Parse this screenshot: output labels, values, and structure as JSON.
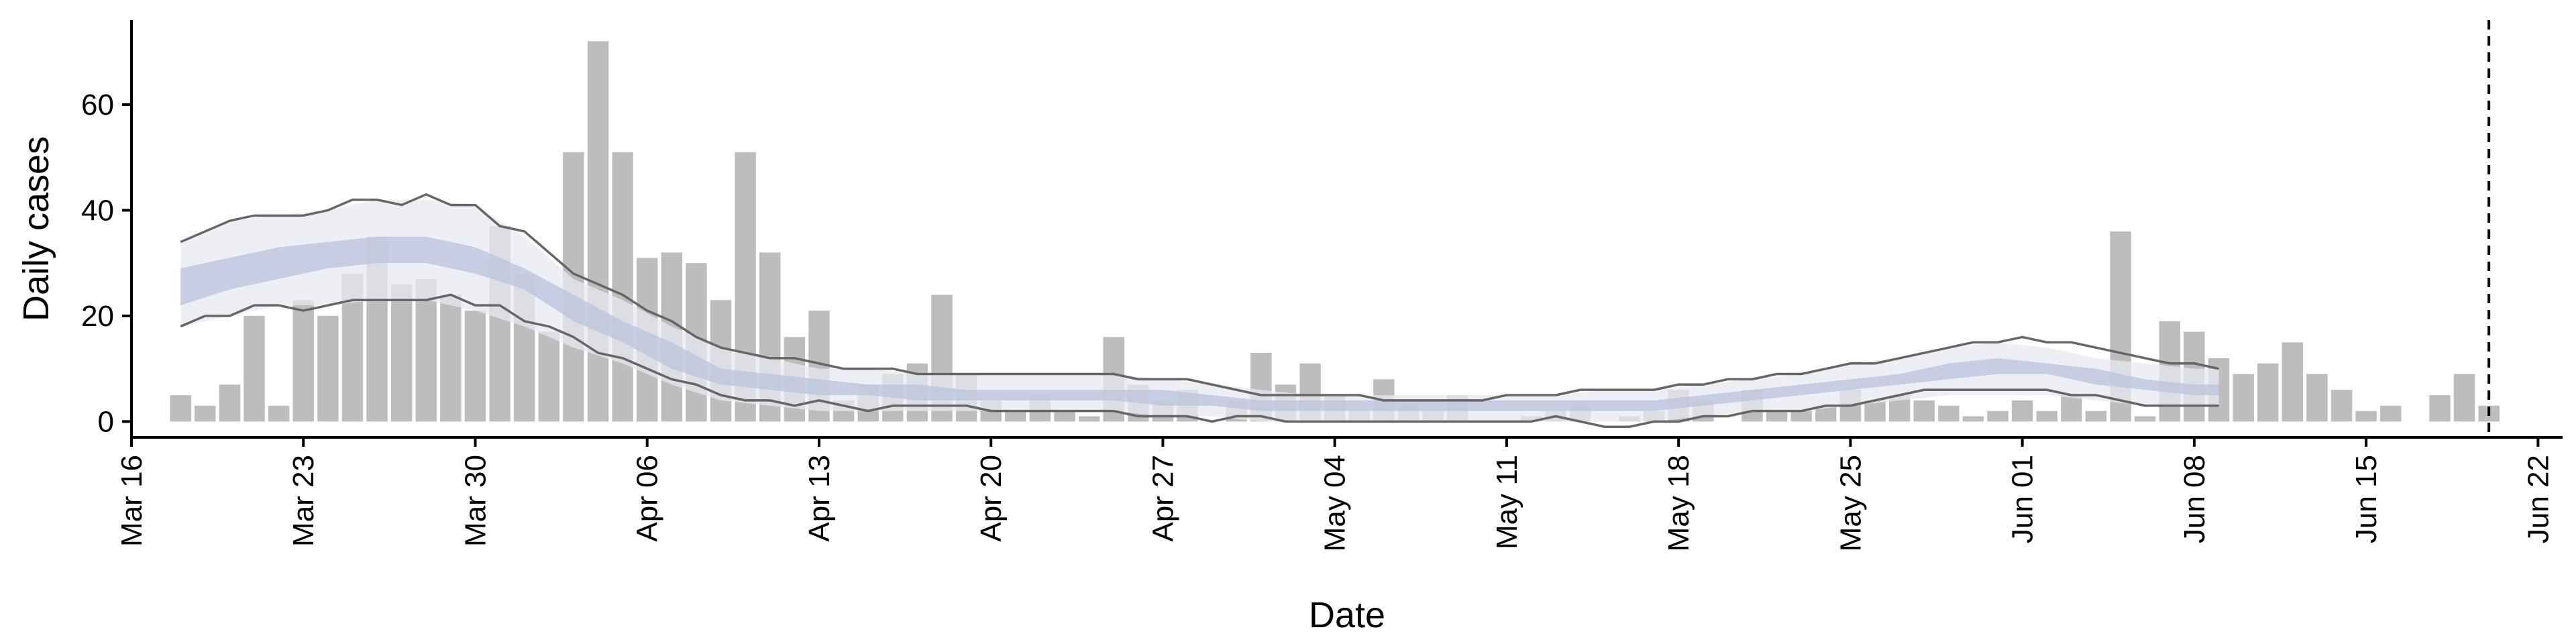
{
  "chart_data": {
    "type": "bar",
    "xlabel": "Date",
    "ylabel": "Daily cases",
    "x_ticks": [
      {
        "date": "2020-03-16",
        "label": "Mar 16"
      },
      {
        "date": "2020-03-23",
        "label": "Mar 23"
      },
      {
        "date": "2020-03-30",
        "label": "Mar 30"
      },
      {
        "date": "2020-04-06",
        "label": "Apr 06"
      },
      {
        "date": "2020-04-13",
        "label": "Apr 13"
      },
      {
        "date": "2020-04-20",
        "label": "Apr 20"
      },
      {
        "date": "2020-04-27",
        "label": "Apr 27"
      },
      {
        "date": "2020-05-04",
        "label": "May 04"
      },
      {
        "date": "2020-05-11",
        "label": "May 11"
      },
      {
        "date": "2020-05-18",
        "label": "May 18"
      },
      {
        "date": "2020-05-25",
        "label": "May 25"
      },
      {
        "date": "2020-06-01",
        "label": "Jun 01"
      },
      {
        "date": "2020-06-08",
        "label": "Jun 08"
      },
      {
        "date": "2020-06-15",
        "label": "Jun 15"
      },
      {
        "date": "2020-06-22",
        "label": "Jun 22"
      }
    ],
    "y_ticks": [
      0,
      20,
      40,
      60
    ],
    "xlim": [
      "2020-03-16",
      "2020-06-23"
    ],
    "ylim": [
      -3,
      76
    ],
    "vline_date": "2020-06-20",
    "colors": {
      "bars": "#bdbdbd",
      "outer_band": "#e8eaf2",
      "inner_band": "#b9c3dc",
      "bound_lines": "#666666",
      "axes": "#000000"
    },
    "series": [
      {
        "kind": "daily_cases",
        "x": [
          "2020-03-18",
          "2020-03-19",
          "2020-03-20",
          "2020-03-21",
          "2020-03-22",
          "2020-03-23",
          "2020-03-24",
          "2020-03-25",
          "2020-03-26",
          "2020-03-27",
          "2020-03-28",
          "2020-03-29",
          "2020-03-30",
          "2020-03-31",
          "2020-04-01",
          "2020-04-02",
          "2020-04-03",
          "2020-04-04",
          "2020-04-05",
          "2020-04-06",
          "2020-04-07",
          "2020-04-08",
          "2020-04-09",
          "2020-04-10",
          "2020-04-11",
          "2020-04-12",
          "2020-04-13",
          "2020-04-14",
          "2020-04-15",
          "2020-04-16",
          "2020-04-17",
          "2020-04-18",
          "2020-04-19",
          "2020-04-20",
          "2020-04-21",
          "2020-04-22",
          "2020-04-23",
          "2020-04-24",
          "2020-04-25",
          "2020-04-26",
          "2020-04-27",
          "2020-04-28",
          "2020-04-29",
          "2020-04-30",
          "2020-05-01",
          "2020-05-02",
          "2020-05-03",
          "2020-05-04",
          "2020-05-05",
          "2020-05-06",
          "2020-05-07",
          "2020-05-08",
          "2020-05-09",
          "2020-05-10",
          "2020-05-11",
          "2020-05-12",
          "2020-05-13",
          "2020-05-14",
          "2020-05-15",
          "2020-05-16",
          "2020-05-17",
          "2020-05-18",
          "2020-05-19",
          "2020-05-20",
          "2020-05-21",
          "2020-05-22",
          "2020-05-23",
          "2020-05-24",
          "2020-05-25",
          "2020-05-26",
          "2020-05-27",
          "2020-05-28",
          "2020-05-29",
          "2020-05-30",
          "2020-05-31",
          "2020-06-01",
          "2020-06-02",
          "2020-06-03",
          "2020-06-04",
          "2020-06-05",
          "2020-06-06",
          "2020-06-07",
          "2020-06-08",
          "2020-06-09",
          "2020-06-10",
          "2020-06-11",
          "2020-06-12",
          "2020-06-13",
          "2020-06-14",
          "2020-06-15",
          "2020-06-16",
          "2020-06-17",
          "2020-06-18",
          "2020-06-19",
          "2020-06-20"
        ],
        "values": [
          5,
          3,
          7,
          20,
          3,
          23,
          20,
          28,
          35,
          26,
          27,
          24,
          21,
          37,
          28,
          17,
          51,
          72,
          51,
          31,
          32,
          30,
          23,
          51,
          32,
          16,
          21,
          4,
          7,
          9,
          11,
          24,
          9,
          4,
          2,
          5,
          2,
          1,
          16,
          7,
          4,
          6,
          0,
          4,
          13,
          7,
          11,
          5,
          2,
          8,
          3,
          2,
          5,
          0,
          0,
          1,
          2,
          3,
          0,
          1,
          2,
          6,
          4,
          0,
          6,
          2,
          2,
          3,
          6,
          4,
          5,
          4,
          3,
          1,
          2,
          4,
          2,
          5,
          2,
          36,
          1,
          19,
          17,
          12,
          9,
          11,
          15,
          9,
          6,
          2,
          3,
          0,
          5,
          9,
          3
        ]
      },
      {
        "kind": "band_outer",
        "x": [
          "2020-03-18",
          "2020-03-20",
          "2020-03-22",
          "2020-03-24",
          "2020-03-26",
          "2020-03-28",
          "2020-03-30",
          "2020-04-01",
          "2020-04-03",
          "2020-04-05",
          "2020-04-07",
          "2020-04-09",
          "2020-04-11",
          "2020-04-13",
          "2020-04-15",
          "2020-04-17",
          "2020-04-19",
          "2020-04-21",
          "2020-04-23",
          "2020-04-25",
          "2020-04-27",
          "2020-04-29",
          "2020-05-01",
          "2020-05-03",
          "2020-05-05",
          "2020-05-07",
          "2020-05-09",
          "2020-05-11",
          "2020-05-13",
          "2020-05-15",
          "2020-05-17",
          "2020-05-19",
          "2020-05-21",
          "2020-05-23",
          "2020-05-25",
          "2020-05-27",
          "2020-05-29",
          "2020-05-31",
          "2020-06-02",
          "2020-06-04",
          "2020-06-06",
          "2020-06-08",
          "2020-06-09"
        ],
        "lower": [
          18,
          20,
          22,
          22,
          23,
          23,
          21,
          18,
          14,
          11,
          7,
          4,
          3,
          2,
          2,
          2,
          2,
          2,
          2,
          2,
          1,
          1,
          0,
          0,
          0,
          0,
          0,
          0,
          0,
          0,
          0,
          1,
          2,
          2,
          3,
          4,
          5,
          5,
          5,
          4,
          3,
          3,
          3
        ],
        "upper": [
          34,
          38,
          39,
          40,
          42,
          42,
          41,
          35,
          27,
          23,
          18,
          14,
          12,
          10,
          10,
          9,
          9,
          9,
          9,
          9,
          8,
          7,
          6,
          5,
          5,
          5,
          5,
          5,
          5,
          6,
          6,
          7,
          8,
          9,
          11,
          12,
          14,
          15,
          14,
          12,
          11,
          10,
          10
        ]
      },
      {
        "kind": "band_inner",
        "x": [
          "2020-03-18",
          "2020-03-20",
          "2020-03-22",
          "2020-03-24",
          "2020-03-26",
          "2020-03-28",
          "2020-03-30",
          "2020-04-01",
          "2020-04-03",
          "2020-04-05",
          "2020-04-07",
          "2020-04-09",
          "2020-04-11",
          "2020-04-13",
          "2020-04-15",
          "2020-04-17",
          "2020-04-19",
          "2020-04-21",
          "2020-04-23",
          "2020-04-25",
          "2020-04-27",
          "2020-04-29",
          "2020-05-01",
          "2020-05-03",
          "2020-05-05",
          "2020-05-07",
          "2020-05-09",
          "2020-05-11",
          "2020-05-13",
          "2020-05-15",
          "2020-05-17",
          "2020-05-19",
          "2020-05-21",
          "2020-05-23",
          "2020-05-25",
          "2020-05-27",
          "2020-05-29",
          "2020-05-31",
          "2020-06-02",
          "2020-06-04",
          "2020-06-06",
          "2020-06-08",
          "2020-06-09"
        ],
        "lower": [
          22,
          25,
          27,
          29,
          30,
          30,
          28,
          25,
          19,
          15,
          10,
          7,
          6,
          5,
          5,
          4,
          4,
          4,
          4,
          4,
          3,
          3,
          2,
          2,
          2,
          2,
          2,
          2,
          2,
          2,
          2,
          3,
          4,
          5,
          6,
          7,
          8,
          9,
          9,
          7,
          6,
          5,
          5
        ],
        "upper": [
          29,
          31,
          33,
          34,
          35,
          35,
          33,
          29,
          24,
          19,
          15,
          10,
          9,
          8,
          7,
          7,
          6,
          6,
          6,
          6,
          6,
          5,
          4,
          4,
          4,
          4,
          4,
          4,
          4,
          4,
          4,
          5,
          6,
          7,
          8,
          9,
          11,
          12,
          11,
          10,
          8,
          7,
          7
        ]
      },
      {
        "kind": "lower_bound_line",
        "x": [
          "2020-03-18",
          "2020-03-19",
          "2020-03-20",
          "2020-03-21",
          "2020-03-22",
          "2020-03-23",
          "2020-03-24",
          "2020-03-25",
          "2020-03-26",
          "2020-03-27",
          "2020-03-28",
          "2020-03-29",
          "2020-03-30",
          "2020-03-31",
          "2020-04-01",
          "2020-04-02",
          "2020-04-03",
          "2020-04-04",
          "2020-04-05",
          "2020-04-06",
          "2020-04-07",
          "2020-04-08",
          "2020-04-09",
          "2020-04-10",
          "2020-04-11",
          "2020-04-12",
          "2020-04-13",
          "2020-04-14",
          "2020-04-15",
          "2020-04-16",
          "2020-04-17",
          "2020-04-18",
          "2020-04-19",
          "2020-04-20",
          "2020-04-21",
          "2020-04-22",
          "2020-04-23",
          "2020-04-24",
          "2020-04-25",
          "2020-04-26",
          "2020-04-27",
          "2020-04-28",
          "2020-04-29",
          "2020-04-30",
          "2020-05-01",
          "2020-05-02",
          "2020-05-03",
          "2020-05-04",
          "2020-05-05",
          "2020-05-06",
          "2020-05-07",
          "2020-05-08",
          "2020-05-09",
          "2020-05-10",
          "2020-05-11",
          "2020-05-12",
          "2020-05-13",
          "2020-05-14",
          "2020-05-15",
          "2020-05-16",
          "2020-05-17",
          "2020-05-18",
          "2020-05-19",
          "2020-05-20",
          "2020-05-21",
          "2020-05-22",
          "2020-05-23",
          "2020-05-24",
          "2020-05-25",
          "2020-05-26",
          "2020-05-27",
          "2020-05-28",
          "2020-05-29",
          "2020-05-30",
          "2020-05-31",
          "2020-06-01",
          "2020-06-02",
          "2020-06-03",
          "2020-06-04",
          "2020-06-05",
          "2020-06-06",
          "2020-06-07",
          "2020-06-08",
          "2020-06-09"
        ],
        "values": [
          18,
          20,
          20,
          22,
          22,
          21,
          22,
          23,
          23,
          23,
          23,
          24,
          22,
          22,
          19,
          18,
          16,
          13,
          12,
          10,
          8,
          7,
          5,
          4,
          4,
          3,
          4,
          3,
          2,
          3,
          3,
          3,
          3,
          2,
          2,
          2,
          2,
          2,
          2,
          1,
          1,
          1,
          0,
          1,
          1,
          0,
          0,
          0,
          0,
          0,
          0,
          0,
          0,
          0,
          0,
          0,
          1,
          0,
          -1,
          -1,
          0,
          0,
          1,
          1,
          2,
          2,
          2,
          3,
          3,
          4,
          5,
          6,
          6,
          6,
          6,
          6,
          6,
          5,
          5,
          4,
          3,
          3,
          3,
          3
        ]
      },
      {
        "kind": "upper_bound_line",
        "x": [
          "2020-03-18",
          "2020-03-19",
          "2020-03-20",
          "2020-03-21",
          "2020-03-22",
          "2020-03-23",
          "2020-03-24",
          "2020-03-25",
          "2020-03-26",
          "2020-03-27",
          "2020-03-28",
          "2020-03-29",
          "2020-03-30",
          "2020-03-31",
          "2020-04-01",
          "2020-04-02",
          "2020-04-03",
          "2020-04-04",
          "2020-04-05",
          "2020-04-06",
          "2020-04-07",
          "2020-04-08",
          "2020-04-09",
          "2020-04-10",
          "2020-04-11",
          "2020-04-12",
          "2020-04-13",
          "2020-04-14",
          "2020-04-15",
          "2020-04-16",
          "2020-04-17",
          "2020-04-18",
          "2020-04-19",
          "2020-04-20",
          "2020-04-21",
          "2020-04-22",
          "2020-04-23",
          "2020-04-24",
          "2020-04-25",
          "2020-04-26",
          "2020-04-27",
          "2020-04-28",
          "2020-04-29",
          "2020-04-30",
          "2020-05-01",
          "2020-05-02",
          "2020-05-03",
          "2020-05-04",
          "2020-05-05",
          "2020-05-06",
          "2020-05-07",
          "2020-05-08",
          "2020-05-09",
          "2020-05-10",
          "2020-05-11",
          "2020-05-12",
          "2020-05-13",
          "2020-05-14",
          "2020-05-15",
          "2020-05-16",
          "2020-05-17",
          "2020-05-18",
          "2020-05-19",
          "2020-05-20",
          "2020-05-21",
          "2020-05-22",
          "2020-05-23",
          "2020-05-24",
          "2020-05-25",
          "2020-05-26",
          "2020-05-27",
          "2020-05-28",
          "2020-05-29",
          "2020-05-30",
          "2020-05-31",
          "2020-06-01",
          "2020-06-02",
          "2020-06-03",
          "2020-06-04",
          "2020-06-05",
          "2020-06-06",
          "2020-06-07",
          "2020-06-08",
          "2020-06-09"
        ],
        "values": [
          34,
          36,
          38,
          39,
          39,
          39,
          40,
          42,
          42,
          41,
          43,
          41,
          41,
          37,
          36,
          32,
          28,
          26,
          24,
          21,
          19,
          16,
          14,
          13,
          12,
          12,
          11,
          10,
          10,
          10,
          9,
          9,
          9,
          9,
          9,
          9,
          9,
          9,
          9,
          8,
          8,
          8,
          7,
          6,
          5,
          5,
          5,
          5,
          5,
          4,
          4,
          4,
          4,
          4,
          5,
          5,
          5,
          6,
          6,
          6,
          6,
          7,
          7,
          8,
          8,
          9,
          9,
          10,
          11,
          11,
          12,
          13,
          14,
          15,
          15,
          16,
          15,
          15,
          14,
          13,
          12,
          11,
          11,
          10
        ]
      }
    ]
  }
}
